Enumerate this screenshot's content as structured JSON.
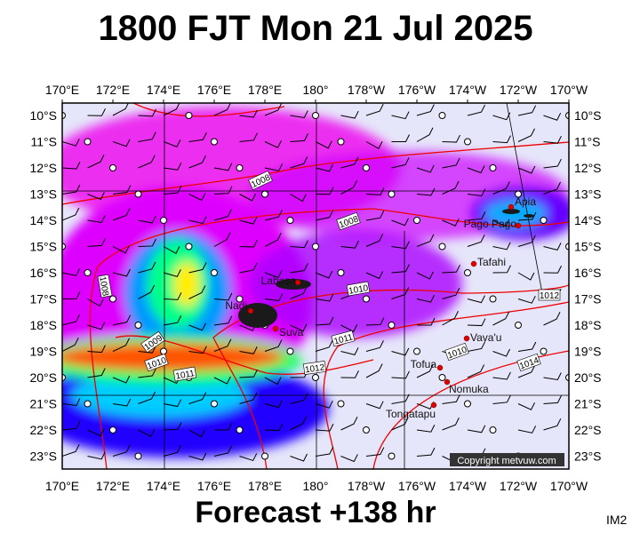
{
  "title": "1800 FJT Mon 21 Jul 2025",
  "footer": "Forecast +138 hr",
  "code": "IM2",
  "longitudes": [
    "170°E",
    "172°E",
    "174°E",
    "176°E",
    "178°E",
    "180°",
    "178°W",
    "176°W",
    "174°W",
    "172°W",
    "170°W"
  ],
  "latitudes": [
    "10°S",
    "11°S",
    "12°S",
    "13°S",
    "14°S",
    "15°S",
    "16°S",
    "17°S",
    "18°S",
    "19°S",
    "20°S",
    "21°S",
    "22°S",
    "23°S"
  ],
  "places": [
    "Apia",
    "Pago Pago",
    "Tafahi",
    "Labasa",
    "Nadi",
    "Suva",
    "Vava'u",
    "Tofua",
    "Nomuka",
    "Tongatapu"
  ],
  "isobar_labels": [
    "1008",
    "1008",
    "1008",
    "1010",
    "1012",
    "1011",
    "1010",
    "1014",
    "1012",
    "1009",
    "1010",
    "1011"
  ],
  "copyright": "Copyright metvuw.com"
}
